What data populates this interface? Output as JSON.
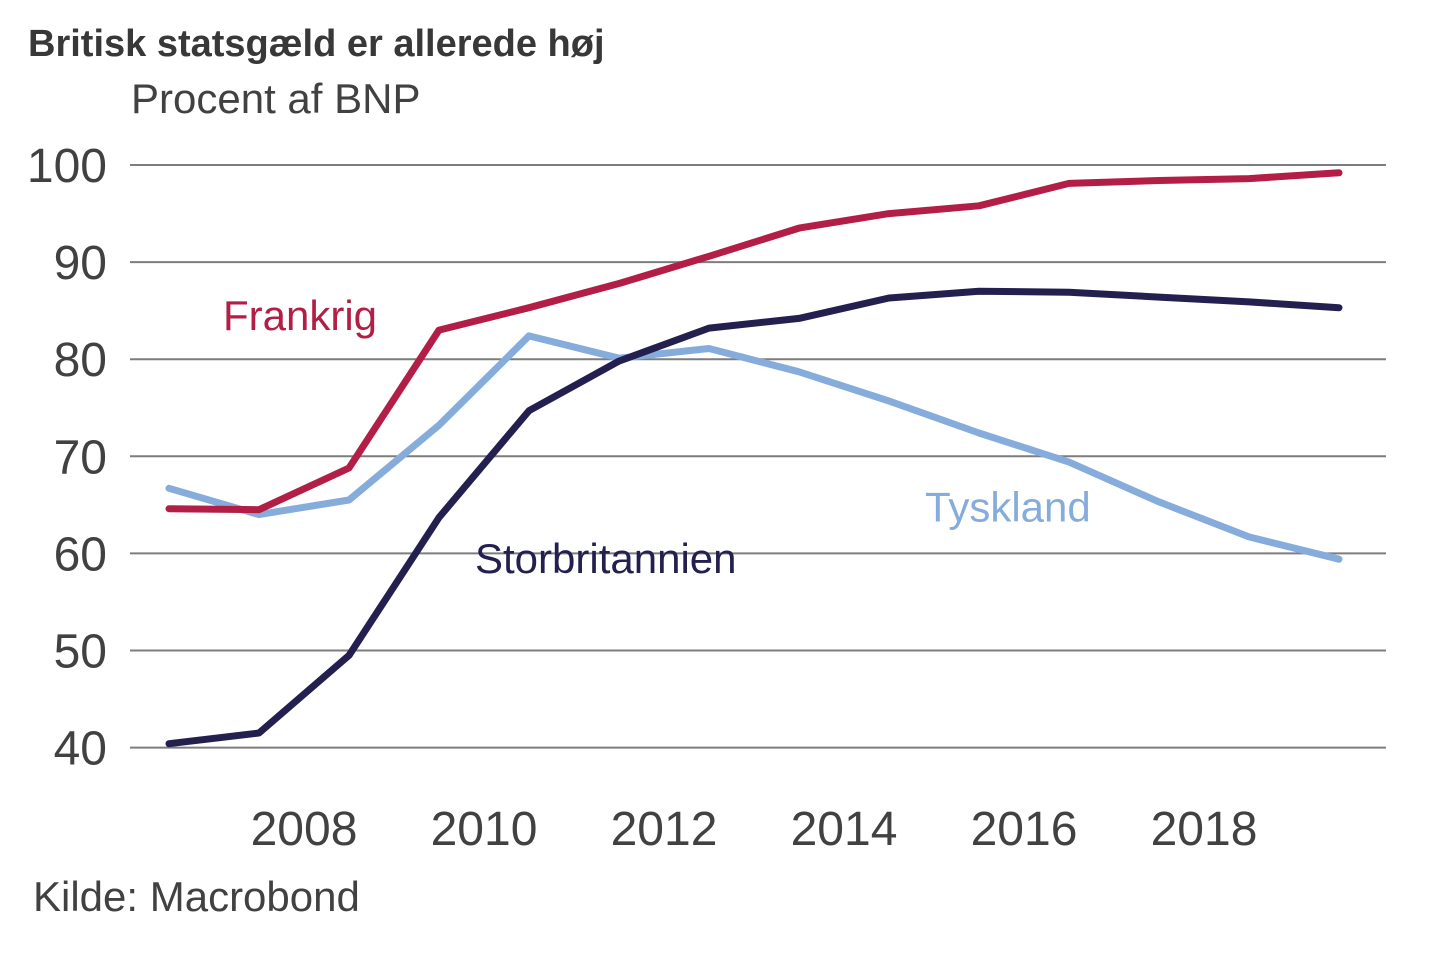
{
  "header": {
    "title": "Britisk statsgæld er allerede høj",
    "subtitle": "Procent af BNP"
  },
  "footer": {
    "source": "Kilde: Macrobond"
  },
  "colors": {
    "grid": "#7d7d7d",
    "axis_text": "#414141",
    "title_text": "#383838",
    "frankrig": "#B21E46",
    "storbritannien": "#232050",
    "tyskland": "#85ACDB"
  },
  "chart_data": {
    "type": "line",
    "title": "Britisk statsgæld er allerede høj",
    "subtitle": "Procent af BNP",
    "source": "Kilde: Macrobond",
    "x": [
      2006,
      2007,
      2008,
      2009,
      2010,
      2011,
      2012,
      2013,
      2014,
      2015,
      2016,
      2017,
      2018,
      2019
    ],
    "series": [
      {
        "name": "Frankrig",
        "color": "#B21E46",
        "values": [
          64.6,
          64.5,
          68.8,
          83.0,
          85.3,
          87.8,
          90.6,
          93.5,
          95.0,
          95.8,
          98.1,
          98.4,
          98.6,
          99.2
        ],
        "label_anchor": {
          "x": 2006.6,
          "y": 83.0
        }
      },
      {
        "name": "Storbritannien",
        "color": "#232050",
        "values": [
          40.4,
          41.5,
          49.5,
          63.7,
          74.7,
          79.8,
          83.2,
          84.2,
          86.3,
          87.0,
          86.9,
          86.4,
          85.9,
          85.3
        ],
        "label_anchor": {
          "x": 2009.4,
          "y": 58.0
        }
      },
      {
        "name": "Tyskland",
        "color": "#85ACDB",
        "values": [
          66.7,
          64.0,
          65.5,
          73.2,
          82.4,
          80.1,
          81.1,
          78.7,
          75.7,
          72.4,
          69.4,
          65.3,
          61.7,
          59.4
        ],
        "label_anchor": {
          "x": 2014.4,
          "y": 63.3
        }
      }
    ],
    "xticks": [
      2008,
      2010,
      2012,
      2014,
      2016,
      2018
    ],
    "yticks": [
      40,
      50,
      60,
      70,
      80,
      90,
      100
    ],
    "ylim": [
      40,
      100
    ],
    "xlim_years": [
      2006,
      2019
    ],
    "grid": true,
    "legend": "inline-labels"
  }
}
